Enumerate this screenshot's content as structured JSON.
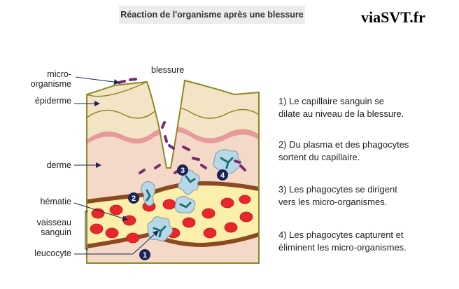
{
  "header": {
    "title": "Réaction de l'organisme après une blessure",
    "brand": "viaSVT.fr"
  },
  "labels": {
    "micro_line1": "micro-",
    "micro_line2": "organisme",
    "epiderme": "épiderme",
    "derme": "derme",
    "hematie": "hématie",
    "vaisseau_line1": "vaisseau",
    "vaisseau_line2": "sanguin",
    "leucocyte": "leucocyte",
    "blessure": "blessure"
  },
  "markers": [
    "1",
    "2",
    "3",
    "4"
  ],
  "steps": [
    {
      "line1": "1) Le capillaire sanguin se",
      "line2": "dilate au niveau de la blessure."
    },
    {
      "line1": "2) Du plasma et des phagocytes",
      "line2": "sortent du capillaire."
    },
    {
      "line1": "3) Les phagocytes se dirigent",
      "line2": "vers les micro-organismes."
    },
    {
      "line1": "4) Les phagocytes capturent et",
      "line2": "éliminent les micro-organismes."
    }
  ],
  "colors": {
    "epidermis": "#f2e4c4",
    "dermis": "#f4d8c8",
    "pink_band": "#e79a9a",
    "blood": "#fbefab",
    "vessel_wall": "#8b4a22",
    "red_cell": "#e8262b",
    "phagocyte": "#b8d8e8",
    "nucleus": "#1d7373",
    "microbe": "#7a2a72",
    "outline": "#8a8a26",
    "marker": "#1a2456"
  }
}
